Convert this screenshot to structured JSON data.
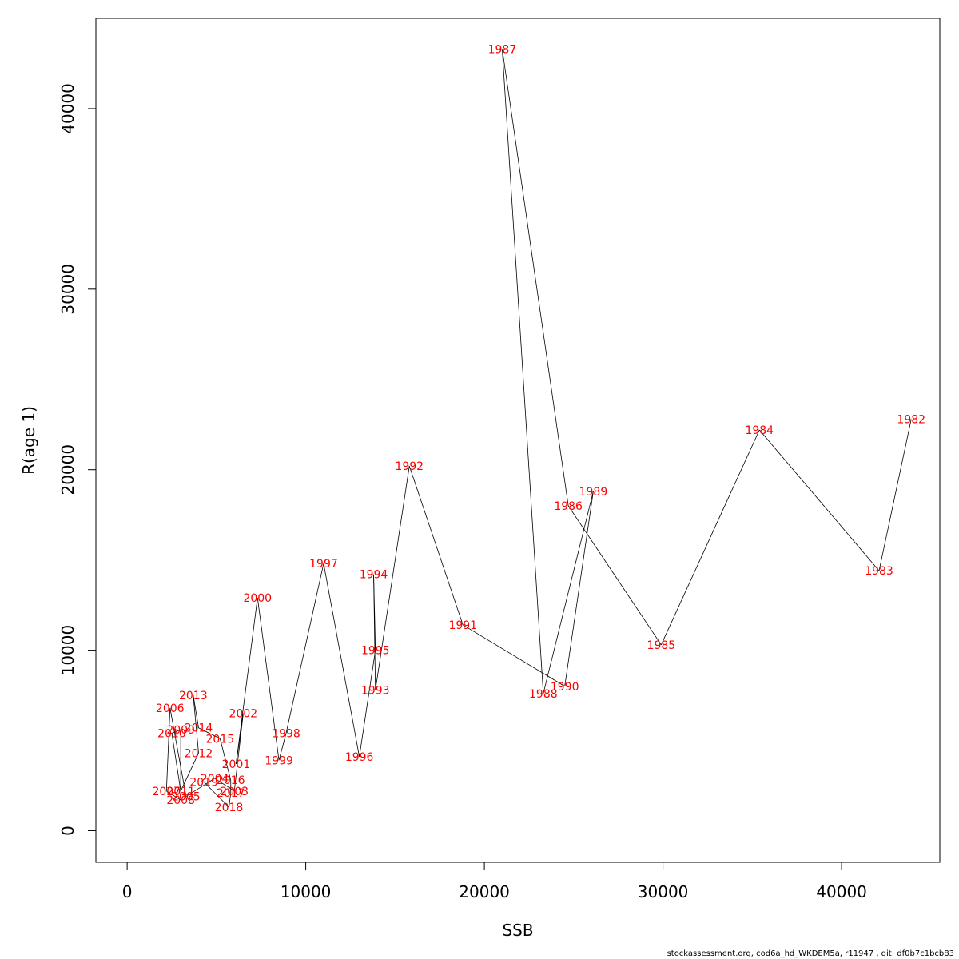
{
  "chart_data": {
    "type": "line",
    "xlabel": "SSB",
    "ylabel": "R(age 1)",
    "xlim": [
      -1750,
      45500
    ],
    "ylim": [
      -1750,
      45000
    ],
    "x_ticks": [
      0,
      10000,
      20000,
      30000,
      40000
    ],
    "y_ticks": [
      0,
      10000,
      20000,
      30000,
      40000
    ],
    "label_color": "#ff0000",
    "line_color": "#000000",
    "grid": false,
    "points": [
      {
        "label": "1982",
        "x": 43900,
        "y": 22800
      },
      {
        "label": "1983",
        "x": 42100,
        "y": 14400
      },
      {
        "label": "1984",
        "x": 35400,
        "y": 22200
      },
      {
        "label": "1985",
        "x": 29900,
        "y": 10300
      },
      {
        "label": "1986",
        "x": 24700,
        "y": 18000
      },
      {
        "label": "1987",
        "x": 21000,
        "y": 43300
      },
      {
        "label": "1988",
        "x": 23300,
        "y": 7600
      },
      {
        "label": "1989",
        "x": 26100,
        "y": 18800
      },
      {
        "label": "1990",
        "x": 24500,
        "y": 8000
      },
      {
        "label": "1991",
        "x": 18800,
        "y": 11400
      },
      {
        "label": "1992",
        "x": 15800,
        "y": 20200
      },
      {
        "label": "1993",
        "x": 13900,
        "y": 7800
      },
      {
        "label": "1994",
        "x": 13800,
        "y": 14200
      },
      {
        "label": "1995",
        "x": 13900,
        "y": 10000
      },
      {
        "label": "1996",
        "x": 13000,
        "y": 4100
      },
      {
        "label": "1997",
        "x": 11000,
        "y": 14800
      },
      {
        "label": "1998",
        "x": 8900,
        "y": 5400
      },
      {
        "label": "1999",
        "x": 8500,
        "y": 3900
      },
      {
        "label": "2000",
        "x": 7300,
        "y": 12900
      },
      {
        "label": "2001",
        "x": 6100,
        "y": 3700
      },
      {
        "label": "2002",
        "x": 6500,
        "y": 6500
      },
      {
        "label": "2003",
        "x": 6000,
        "y": 2200
      },
      {
        "label": "2004",
        "x": 4900,
        "y": 2900
      },
      {
        "label": "2005",
        "x": 3300,
        "y": 1900
      },
      {
        "label": "2006",
        "x": 2400,
        "y": 6800
      },
      {
        "label": "2007",
        "x": 2200,
        "y": 2200
      },
      {
        "label": "2008",
        "x": 3000,
        "y": 1700
      },
      {
        "label": "2009",
        "x": 3000,
        "y": 5600
      },
      {
        "label": "2010",
        "x": 2500,
        "y": 5400
      },
      {
        "label": "2011",
        "x": 3000,
        "y": 2200
      },
      {
        "label": "2012",
        "x": 4000,
        "y": 4300
      },
      {
        "label": "2013",
        "x": 3700,
        "y": 7500
      },
      {
        "label": "2014",
        "x": 4000,
        "y": 5700
      },
      {
        "label": "2015",
        "x": 5200,
        "y": 5100
      },
      {
        "label": "2016",
        "x": 5800,
        "y": 2800
      },
      {
        "label": "2017",
        "x": 5800,
        "y": 2100
      },
      {
        "label": "2018",
        "x": 5700,
        "y": 1300
      },
      {
        "label": "2019",
        "x": 4300,
        "y": 2700
      }
    ]
  },
  "footer_text": "stockassessment.org, cod6a_hd_WKDEM5a, r11947 , git: df0b7c1bcb83"
}
